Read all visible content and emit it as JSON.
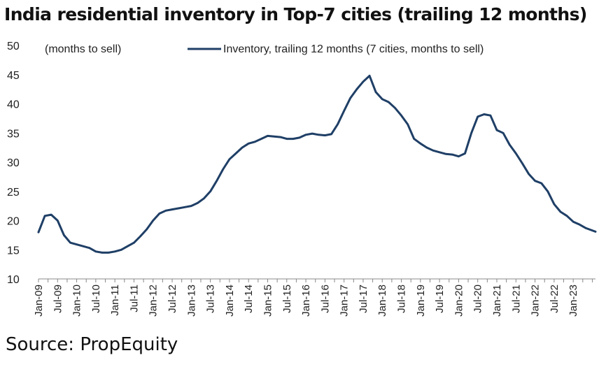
{
  "title": "India residential inventory in Top-7 cities (trailing 12 months)",
  "source": "Source: PropEquity",
  "chart_data": {
    "type": "line",
    "title": "India residential inventory in Top-7 cities (trailing 12 months)",
    "ylabel": "(months to sell)",
    "xlabel": "",
    "ylim": [
      10,
      50
    ],
    "yticks": [
      10,
      15,
      20,
      25,
      30,
      35,
      40,
      45,
      50
    ],
    "xlim": [
      "2009-01",
      "2023-08"
    ],
    "xticks": [
      "Jan-09",
      "Jul-09",
      "Jan-10",
      "Jul-10",
      "Jan-11",
      "Jul-11",
      "Jan-12",
      "Jul-12",
      "Jan-13",
      "Jul-13",
      "Jan-14",
      "Jul-14",
      "Jan-15",
      "Jul-15",
      "Jan-16",
      "Jul-16",
      "Jan-17",
      "Jul-17",
      "Jan-18",
      "Jul-18",
      "Jan-19",
      "Jul-19",
      "Jan-20",
      "Jul-20",
      "Jan-21",
      "Jul-21",
      "Jan-22",
      "Jul-22",
      "Jan-23"
    ],
    "grid": false,
    "legend_position": "top",
    "color": "#1f3f66",
    "series": [
      {
        "name": "Inventory, trailing 12 months (7 cities, months to sell)",
        "points": [
          [
            "2009-01",
            18.0
          ],
          [
            "2009-03",
            20.8
          ],
          [
            "2009-05",
            21.0
          ],
          [
            "2009-07",
            20.0
          ],
          [
            "2009-09",
            17.5
          ],
          [
            "2009-11",
            16.2
          ],
          [
            "2010-01",
            15.9
          ],
          [
            "2010-03",
            15.6
          ],
          [
            "2010-05",
            15.3
          ],
          [
            "2010-07",
            14.7
          ],
          [
            "2010-09",
            14.5
          ],
          [
            "2010-11",
            14.5
          ],
          [
            "2011-01",
            14.7
          ],
          [
            "2011-03",
            15.0
          ],
          [
            "2011-05",
            15.6
          ],
          [
            "2011-07",
            16.2
          ],
          [
            "2011-09",
            17.3
          ],
          [
            "2011-11",
            18.5
          ],
          [
            "2012-01",
            20.0
          ],
          [
            "2012-03",
            21.2
          ],
          [
            "2012-05",
            21.7
          ],
          [
            "2012-07",
            21.9
          ],
          [
            "2012-09",
            22.1
          ],
          [
            "2012-11",
            22.3
          ],
          [
            "2013-01",
            22.5
          ],
          [
            "2013-03",
            23.0
          ],
          [
            "2013-05",
            23.8
          ],
          [
            "2013-07",
            25.0
          ],
          [
            "2013-09",
            26.8
          ],
          [
            "2013-11",
            28.8
          ],
          [
            "2014-01",
            30.5
          ],
          [
            "2014-03",
            31.5
          ],
          [
            "2014-05",
            32.5
          ],
          [
            "2014-07",
            33.2
          ],
          [
            "2014-09",
            33.5
          ],
          [
            "2014-11",
            34.0
          ],
          [
            "2015-01",
            34.5
          ],
          [
            "2015-03",
            34.4
          ],
          [
            "2015-05",
            34.3
          ],
          [
            "2015-07",
            34.0
          ],
          [
            "2015-09",
            34.0
          ],
          [
            "2015-11",
            34.2
          ],
          [
            "2016-01",
            34.7
          ],
          [
            "2016-03",
            34.9
          ],
          [
            "2016-05",
            34.7
          ],
          [
            "2016-07",
            34.6
          ],
          [
            "2016-09",
            34.8
          ],
          [
            "2016-11",
            36.5
          ],
          [
            "2017-01",
            38.8
          ],
          [
            "2017-03",
            41.0
          ],
          [
            "2017-05",
            42.5
          ],
          [
            "2017-07",
            43.8
          ],
          [
            "2017-09",
            44.8
          ],
          [
            "2017-11",
            42.0
          ],
          [
            "2018-01",
            40.8
          ],
          [
            "2018-03",
            40.3
          ],
          [
            "2018-05",
            39.3
          ],
          [
            "2018-07",
            38.0
          ],
          [
            "2018-09",
            36.5
          ],
          [
            "2018-11",
            34.0
          ],
          [
            "2019-01",
            33.2
          ],
          [
            "2019-03",
            32.5
          ],
          [
            "2019-05",
            32.0
          ],
          [
            "2019-07",
            31.7
          ],
          [
            "2019-09",
            31.4
          ],
          [
            "2019-11",
            31.3
          ],
          [
            "2020-01",
            31.0
          ],
          [
            "2020-03",
            31.5
          ],
          [
            "2020-05",
            35.0
          ],
          [
            "2020-07",
            37.8
          ],
          [
            "2020-09",
            38.2
          ],
          [
            "2020-11",
            38.0
          ],
          [
            "2021-01",
            35.5
          ],
          [
            "2021-03",
            35.0
          ],
          [
            "2021-05",
            33.0
          ],
          [
            "2021-07",
            31.5
          ],
          [
            "2021-09",
            29.8
          ],
          [
            "2021-11",
            28.0
          ],
          [
            "2022-01",
            26.8
          ],
          [
            "2022-03",
            26.4
          ],
          [
            "2022-05",
            25.0
          ],
          [
            "2022-07",
            22.8
          ],
          [
            "2022-09",
            21.5
          ],
          [
            "2022-11",
            20.8
          ],
          [
            "2023-01",
            19.8
          ],
          [
            "2023-03",
            19.3
          ],
          [
            "2023-05",
            18.7
          ],
          [
            "2023-08",
            18.1
          ]
        ]
      }
    ]
  }
}
